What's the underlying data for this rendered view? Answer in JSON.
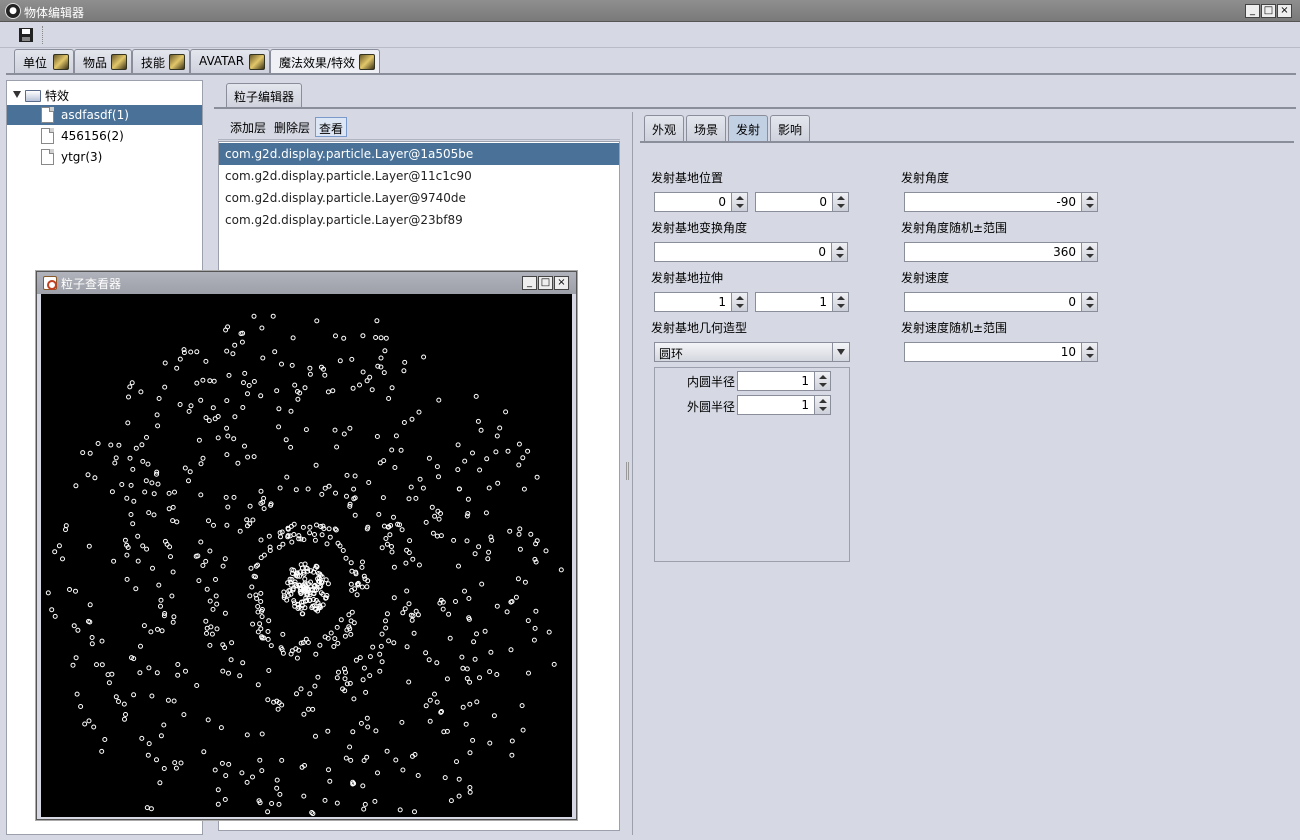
{
  "window": {
    "title": "物体编辑器",
    "controls": [
      "_",
      "□",
      "×"
    ]
  },
  "main_tabs": [
    {
      "label": "单位",
      "icon": "unit-icon"
    },
    {
      "label": "物品",
      "icon": "item-icon"
    },
    {
      "label": "技能",
      "icon": "skill-icon"
    },
    {
      "label": "AVATAR",
      "icon": "avatar-icon"
    },
    {
      "label": "魔法效果/特效",
      "icon": "effect-icon",
      "active": true
    }
  ],
  "tree": {
    "root": "特效",
    "items": [
      "asdfasdf(1)",
      "456156(2)",
      "ytgr(3)"
    ],
    "selected_index": 0
  },
  "sub_tab": "粒子编辑器",
  "layer_toolbar": {
    "add": "添加层",
    "delete": "删除层",
    "view": "查看"
  },
  "layers": [
    "com.g2d.display.particle.Layer@1a505be",
    "com.g2d.display.particle.Layer@11c1c90",
    "com.g2d.display.particle.Layer@9740de",
    "com.g2d.display.particle.Layer@23bf89"
  ],
  "props_tabs": [
    "外观",
    "场景",
    "发射",
    "影响"
  ],
  "props_active_tab": "发射",
  "emit": {
    "base_pos_label": "发射基地位置",
    "base_pos_x": "0",
    "base_pos_y": "0",
    "base_angle_label": "发射基地变换角度",
    "base_angle": "0",
    "base_stretch_label": "发射基地拉伸",
    "base_stretch_x": "1",
    "base_stretch_y": "1",
    "base_shape_label": "发射基地几何造型",
    "base_shape": "圆环",
    "inner_radius_label": "内圆半径",
    "inner_radius": "1",
    "outer_radius_label": "外圆半径",
    "outer_radius": "1",
    "angle_label": "发射角度",
    "angle": "-90",
    "angle_range_label": "发射角度随机±范围",
    "angle_range": "360",
    "speed_label": "发射速度",
    "speed": "0",
    "speed_range_label": "发射速度随机±范围",
    "speed_range": "10"
  },
  "viewer": {
    "title": "粒子查看器",
    "background": "#000000",
    "particle_color": "#ffffff"
  }
}
